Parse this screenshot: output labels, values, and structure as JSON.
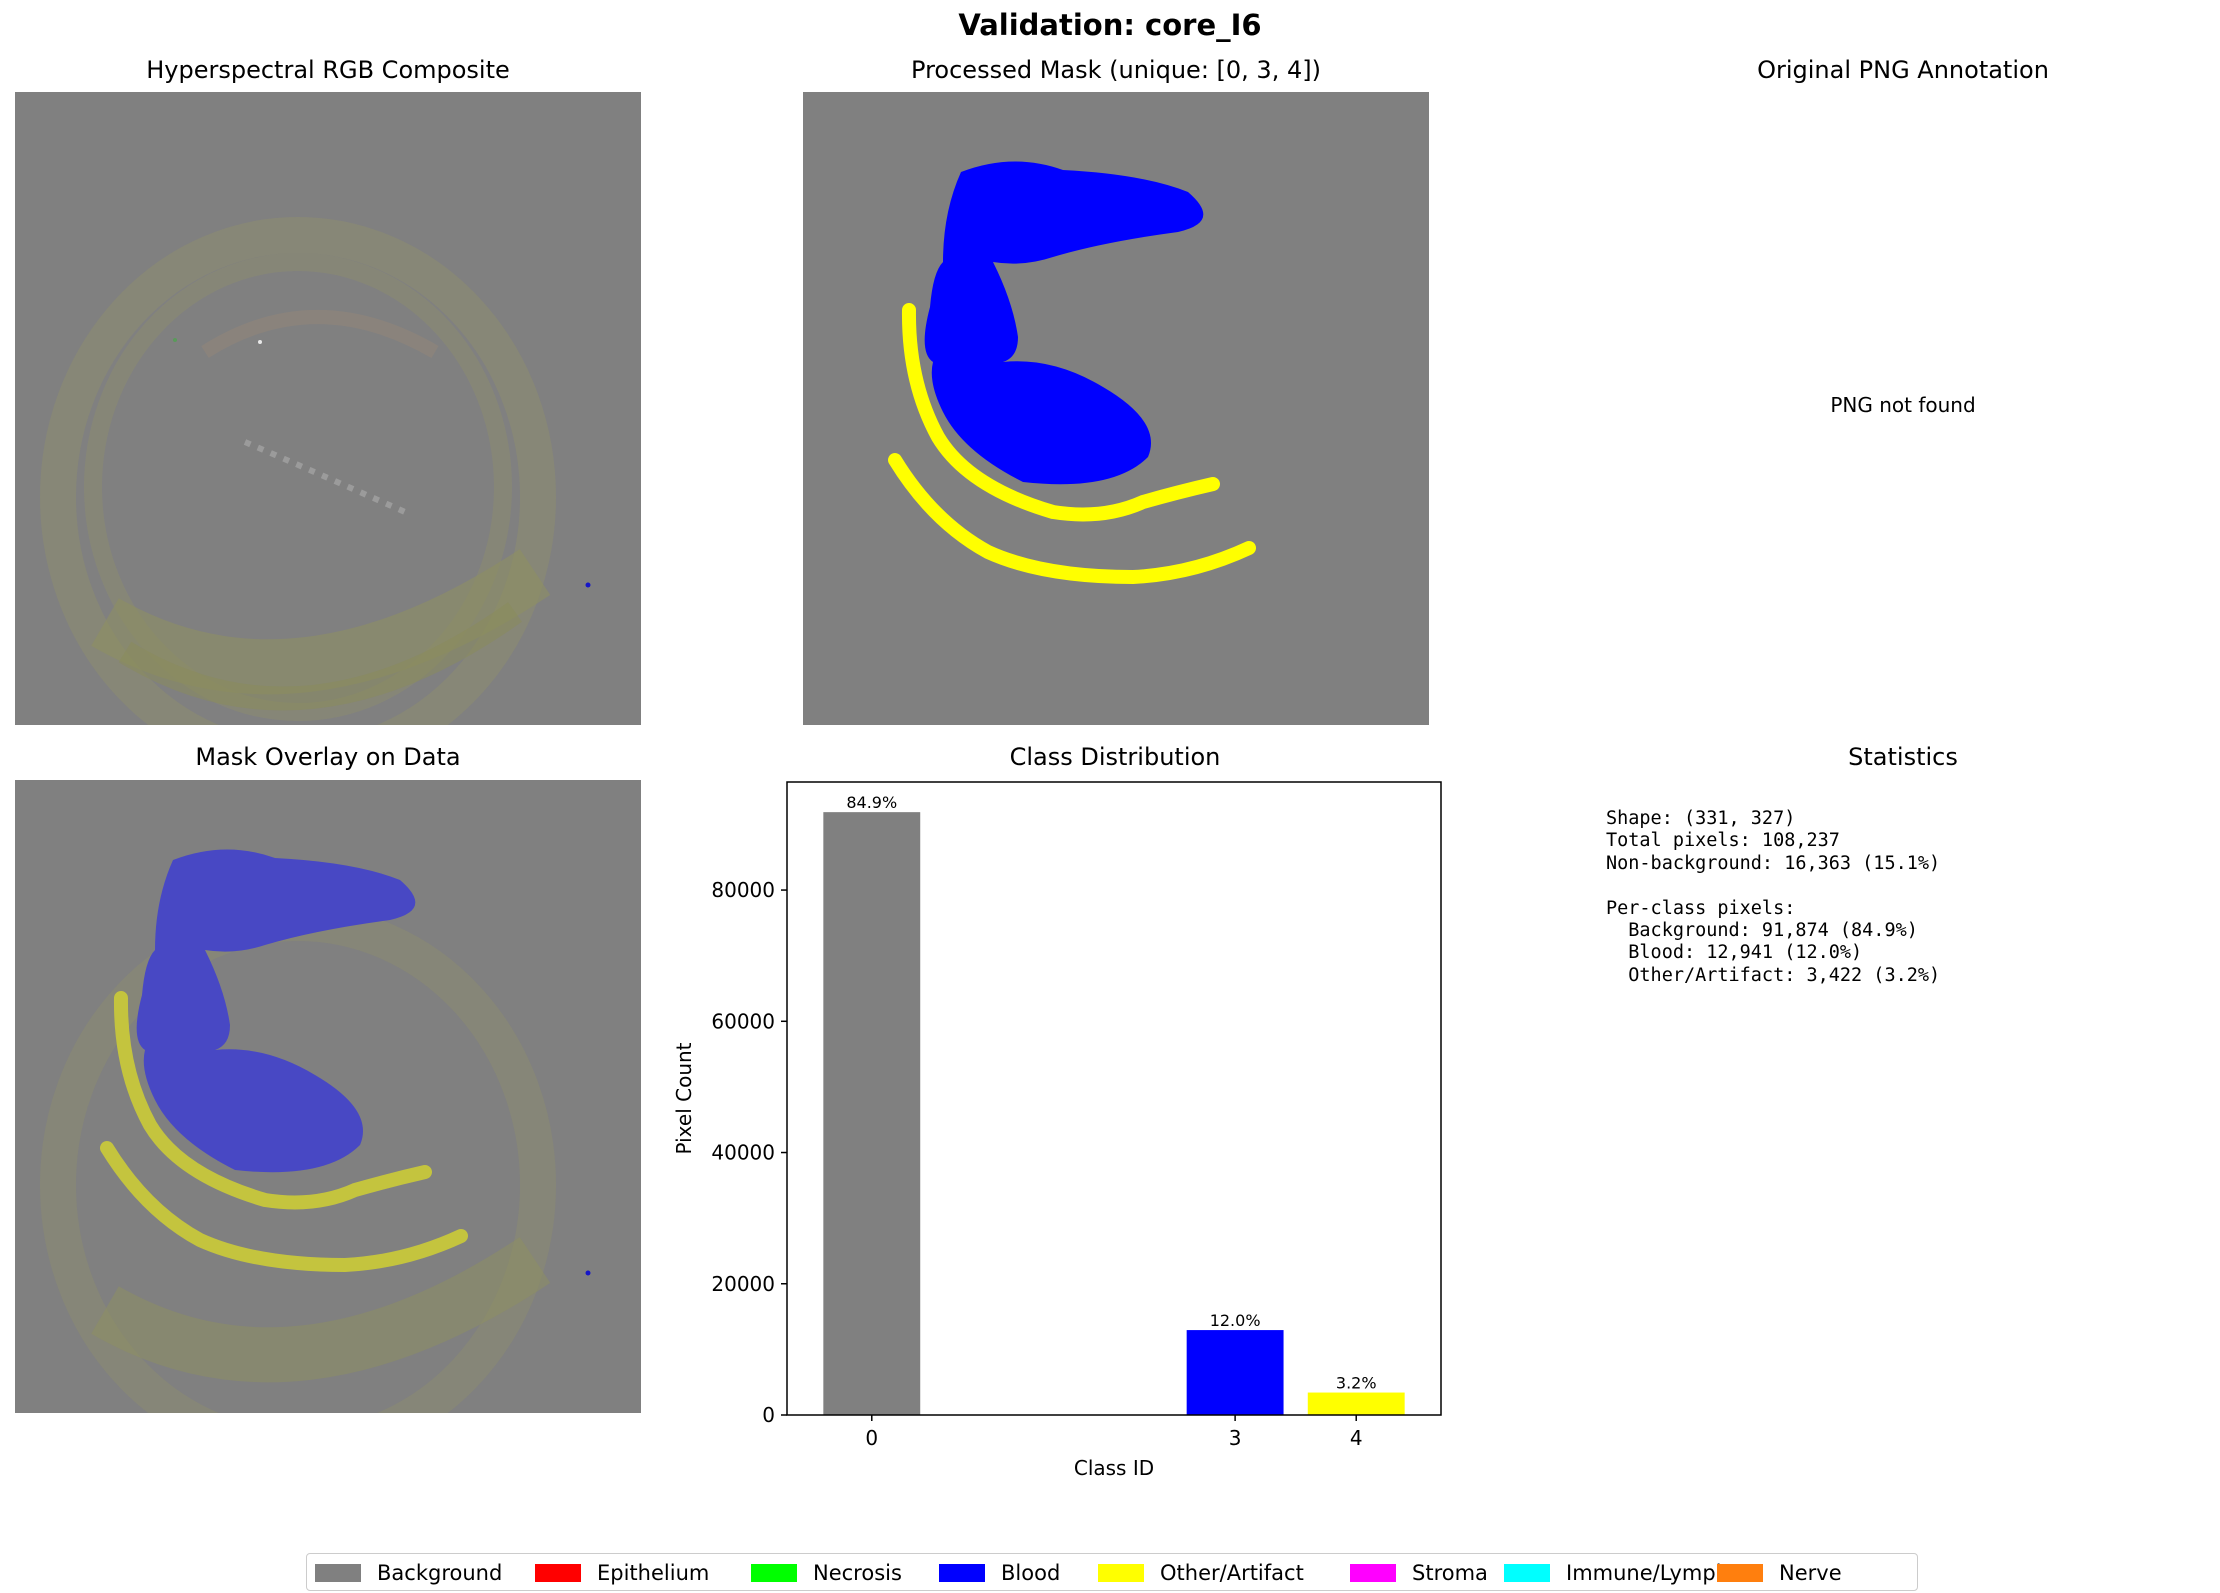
{
  "figure": {
    "title": "Validation: core_I6"
  },
  "panels": {
    "rgb_title": "Hyperspectral RGB Composite",
    "mask_title": "Processed Mask (unique: [0, 3, 4])",
    "png_title": "Original PNG Annotation",
    "png_message": "PNG not found",
    "overlay_title": "Mask Overlay on Data",
    "dist_title": "Class Distribution",
    "stats_title": "Statistics"
  },
  "statistics": {
    "lines": [
      "Shape: (331, 327)",
      "Total pixels: 108,237",
      "Non-background: 16,363 (15.1%)",
      "",
      "Per-class pixels:",
      "  Background: 91,874 (84.9%)",
      "  Blood: 12,941 (12.0%)",
      "  Other/Artifact: 3,422 (3.2%)"
    ]
  },
  "chart_data": {
    "type": "bar",
    "title": "Class Distribution",
    "xlabel": "Class ID",
    "ylabel": "Pixel Count",
    "x": [
      0,
      3,
      4
    ],
    "categories": [
      "0",
      "3",
      "4"
    ],
    "values": [
      91874,
      12941,
      3422
    ],
    "labels": [
      "84.9%",
      "12.0%",
      "3.2%"
    ],
    "colors": [
      "#808080",
      "#0000ff",
      "#ffff00"
    ],
    "xlim": [
      -0.7,
      4.7
    ],
    "ylim": [
      0,
      96468
    ],
    "yticks": [
      0,
      20000,
      40000,
      60000,
      80000
    ],
    "ytick_labels": [
      "0",
      "20000",
      "40000",
      "60000",
      "80000"
    ]
  },
  "legend": {
    "items": [
      {
        "label": "Background",
        "color": "#808080"
      },
      {
        "label": "Epithelium",
        "color": "#ff0000"
      },
      {
        "label": "Necrosis",
        "color": "#00ff00"
      },
      {
        "label": "Blood",
        "color": "#0000ff"
      },
      {
        "label": "Other/Artifact",
        "color": "#ffff00"
      },
      {
        "label": "Stroma",
        "color": "#ff00ff"
      },
      {
        "label": "Immune/Lymph",
        "color": "#00ffff"
      },
      {
        "label": "Nerve",
        "color": "#ff7f0e"
      }
    ]
  }
}
